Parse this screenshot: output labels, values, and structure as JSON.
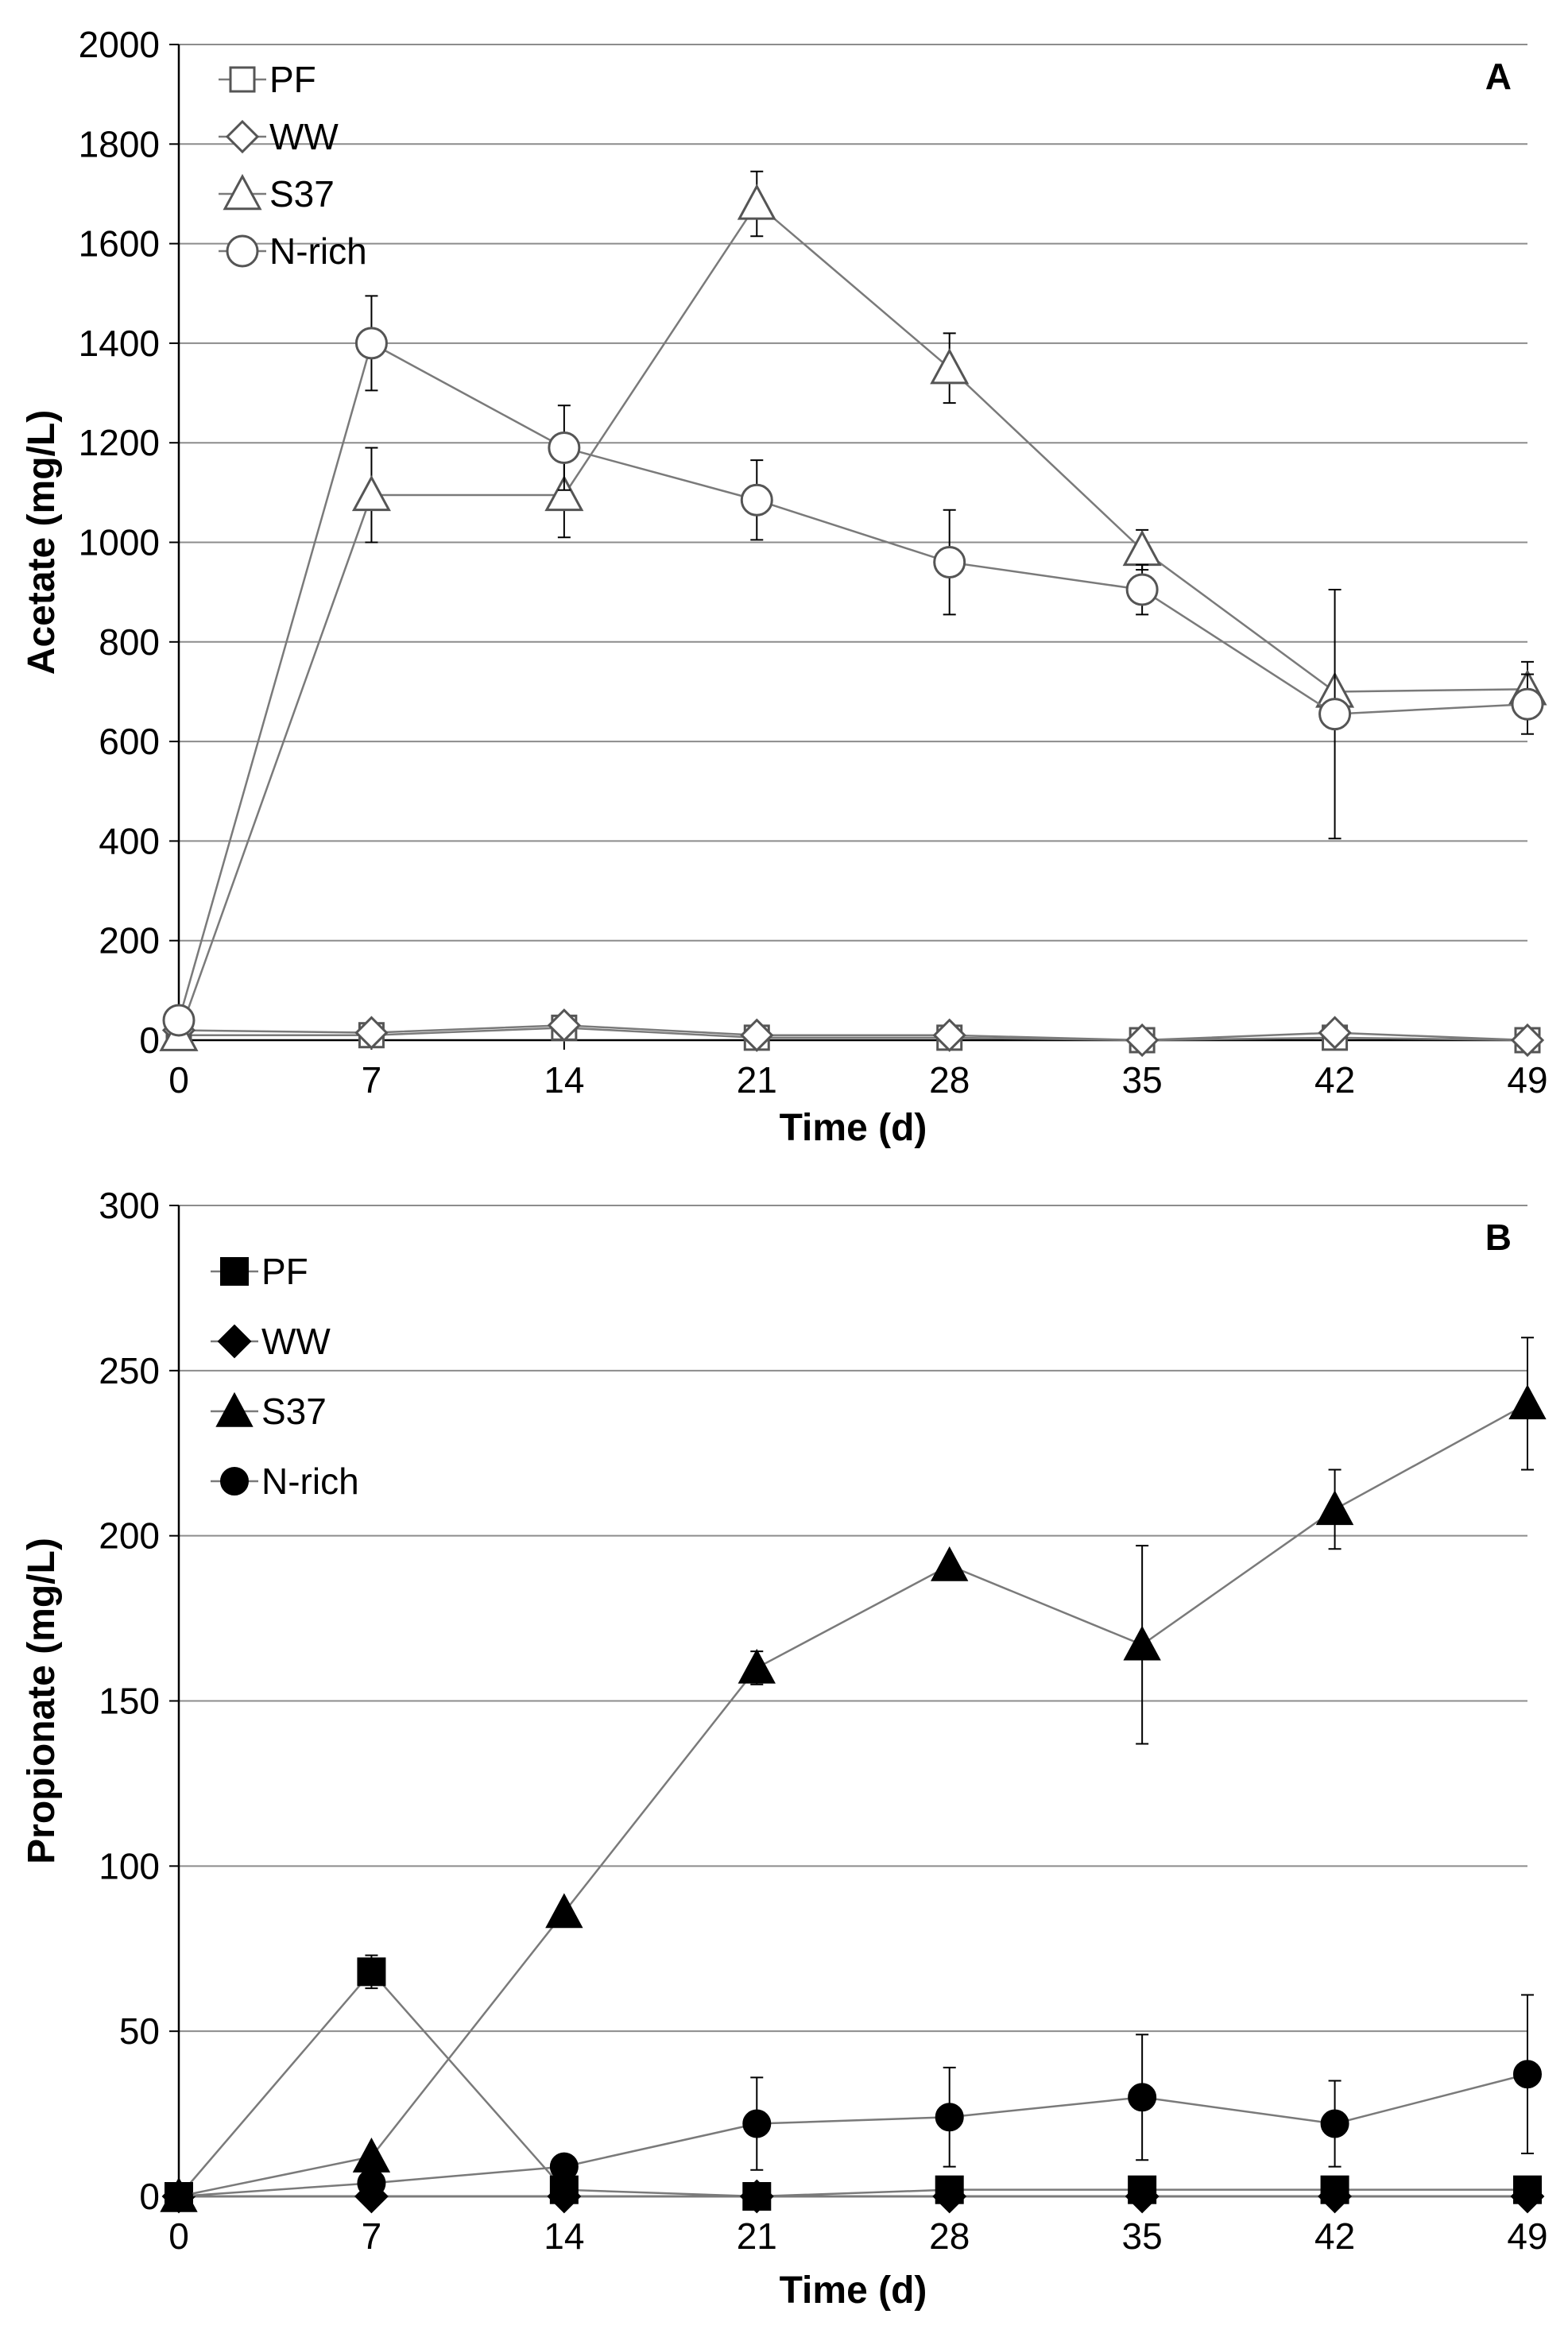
{
  "chart_data": [
    {
      "type": "line",
      "panel_label": "A",
      "xlabel": "Time (d)",
      "ylabel": "Acetate (mg/L)",
      "x": [
        0,
        7,
        14,
        21,
        28,
        35,
        42,
        49
      ],
      "xtick_labels": [
        "0",
        "7",
        "14",
        "21",
        "28",
        "35",
        "42",
        "49"
      ],
      "ylim": [
        0,
        2000
      ],
      "ytick_labels": [
        "0",
        "200",
        "400",
        "600",
        "800",
        "1000",
        "1200",
        "1400",
        "1600",
        "1800",
        "2000"
      ],
      "grid": true,
      "legend_position": "top-left",
      "marker_fill": "open",
      "series": [
        {
          "name": "PF",
          "marker": "square",
          "values": [
            10,
            10,
            25,
            5,
            5,
            0,
            5,
            0
          ],
          "errors": [
            0,
            0,
            0,
            0,
            0,
            0,
            0,
            0
          ]
        },
        {
          "name": "WW",
          "marker": "diamond",
          "values": [
            20,
            15,
            30,
            10,
            10,
            0,
            15,
            0
          ],
          "errors": [
            0,
            0,
            0,
            0,
            0,
            0,
            0,
            0
          ]
        },
        {
          "name": "S37",
          "marker": "triangle",
          "values": [
            10,
            1095,
            1095,
            1680,
            1350,
            985,
            700,
            705
          ],
          "errors": [
            0,
            95,
            85,
            65,
            70,
            40,
            0,
            55
          ]
        },
        {
          "name": "N-rich",
          "marker": "circle",
          "values": [
            40,
            1400,
            1190,
            1085,
            960,
            905,
            655,
            675
          ],
          "errors": [
            0,
            95,
            85,
            80,
            105,
            50,
            250,
            60
          ]
        }
      ]
    },
    {
      "type": "line",
      "panel_label": "B",
      "xlabel": "Time (d)",
      "ylabel": "Propionate (mg/L)",
      "x": [
        0,
        7,
        14,
        21,
        28,
        35,
        42,
        49
      ],
      "xtick_labels": [
        "0",
        "7",
        "14",
        "21",
        "28",
        "35",
        "42",
        "49"
      ],
      "ylim": [
        0,
        300
      ],
      "ytick_labels": [
        "0",
        "50",
        "100",
        "150",
        "200",
        "250",
        "300"
      ],
      "grid": true,
      "legend_position": "top-left",
      "marker_fill": "filled",
      "series": [
        {
          "name": "PF",
          "marker": "square",
          "values": [
            0,
            68,
            2,
            0,
            2,
            2,
            2,
            2
          ],
          "errors": [
            0,
            5,
            0,
            0,
            0,
            0,
            0,
            0
          ]
        },
        {
          "name": "WW",
          "marker": "diamond",
          "values": [
            0,
            0,
            0,
            0,
            0,
            0,
            0,
            0
          ],
          "errors": [
            0,
            0,
            0,
            0,
            0,
            0,
            0,
            0
          ]
        },
        {
          "name": "S37",
          "marker": "triangle",
          "values": [
            0,
            12,
            86,
            160,
            191,
            167,
            208,
            240
          ],
          "errors": [
            0,
            0,
            0,
            5,
            0,
            30,
            12,
            20
          ]
        },
        {
          "name": "N-rich",
          "marker": "circle",
          "values": [
            0,
            4,
            9,
            22,
            24,
            30,
            22,
            37
          ],
          "errors": [
            0,
            0,
            0,
            14,
            15,
            19,
            13,
            24
          ]
        }
      ]
    }
  ]
}
